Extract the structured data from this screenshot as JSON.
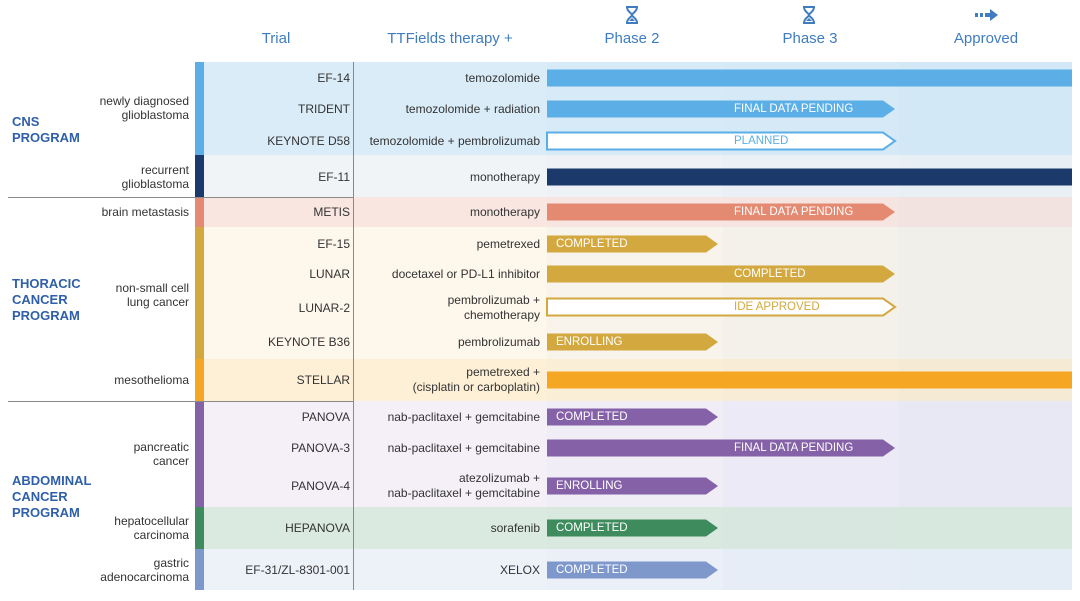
{
  "headers": {
    "trial": "Trial",
    "therapy": "TTFields therapy +",
    "phase2": "Phase 2",
    "phase3": "Phase 3",
    "approved": "Approved"
  },
  "icons": {
    "phase2": "hourglass-icon",
    "phase3": "hourglass-icon",
    "approved": "arrow-right-icon"
  },
  "programs": [
    {
      "name": "CNS\nPROGRAM"
    },
    {
      "name": "THORACIC\nCANCER\nPROGRAM"
    },
    {
      "name": "ABDOMINAL\nCANCER\nPROGRAM"
    }
  ],
  "indications": [
    {
      "label": "newly diagnosed\nglioblastoma"
    },
    {
      "label": "recurrent\nglioblastoma"
    },
    {
      "label": "brain metastasis"
    },
    {
      "label": "non-small cell\nlung cancer"
    },
    {
      "label": "mesothelioma"
    },
    {
      "label": "pancreatic\ncancer"
    },
    {
      "label": "hepatocellular\ncarcinoma"
    },
    {
      "label": "gastric\nadenocarcinoma"
    }
  ],
  "trials": [
    {
      "trial": "EF-14",
      "therapy": "temozolomide",
      "stage": "Approved",
      "status": "",
      "outlined": false
    },
    {
      "trial": "TRIDENT",
      "therapy": "temozolomide + radiation",
      "stage": "Phase 3",
      "status": "FINAL DATA PENDING",
      "outlined": false
    },
    {
      "trial": "KEYNOTE D58",
      "therapy": "temozolomide + pembrolizumab",
      "stage": "Phase 3",
      "status": "PLANNED",
      "outlined": true
    },
    {
      "trial": "EF-11",
      "therapy": "monotherapy",
      "stage": "Approved",
      "status": "",
      "outlined": false
    },
    {
      "trial": "METIS",
      "therapy": "monotherapy",
      "stage": "Phase 3",
      "status": "FINAL DATA PENDING",
      "outlined": false
    },
    {
      "trial": "EF-15",
      "therapy": "pemetrexed",
      "stage": "Phase 2",
      "status": "COMPLETED",
      "outlined": false
    },
    {
      "trial": "LUNAR",
      "therapy": "docetaxel or PD-L1 inhibitor",
      "stage": "Phase 3",
      "status": "COMPLETED",
      "outlined": false
    },
    {
      "trial": "LUNAR-2",
      "therapy": "pembrolizumab +\nchemotherapy",
      "stage": "Phase 3",
      "status": "IDE APPROVED",
      "outlined": true
    },
    {
      "trial": "KEYNOTE B36",
      "therapy": "pembrolizumab",
      "stage": "Phase 2",
      "status": "ENROLLING",
      "outlined": false
    },
    {
      "trial": "STELLAR",
      "therapy": "pemetrexed +\n(cisplatin or carboplatin)",
      "stage": "Approved",
      "status": "",
      "outlined": false
    },
    {
      "trial": "PANOVA",
      "therapy": "nab-paclitaxel + gemcitabine",
      "stage": "Phase 2",
      "status": "COMPLETED",
      "outlined": false
    },
    {
      "trial": "PANOVA-3",
      "therapy": "nab-paclitaxel + gemcitabine",
      "stage": "Phase 3",
      "status": "FINAL DATA PENDING",
      "outlined": false
    },
    {
      "trial": "PANOVA-4",
      "therapy": "atezolizumab +\nnab-paclitaxel + gemcitabine",
      "stage": "Phase 2",
      "status": "ENROLLING",
      "outlined": false
    },
    {
      "trial": "HEPANOVA",
      "therapy": "sorafenib",
      "stage": "Phase 2",
      "status": "COMPLETED",
      "outlined": false
    },
    {
      "trial": "EF-31/ZL-8301-001",
      "therapy": "XELOX",
      "stage": "Phase 2",
      "status": "COMPLETED",
      "outlined": false
    }
  ],
  "colors": {
    "header": "#3f7cc0",
    "program": "#2f5fa8",
    "cns": "#5baee6",
    "rgbm": "#1b3a6b",
    "brain_met": "#e58a72",
    "nsclc": "#d2a83f",
    "meso": "#f5a623",
    "pancreatic": "#8561a8",
    "hcc": "#3e8b5e",
    "gastric": "#7f98cc"
  }
}
